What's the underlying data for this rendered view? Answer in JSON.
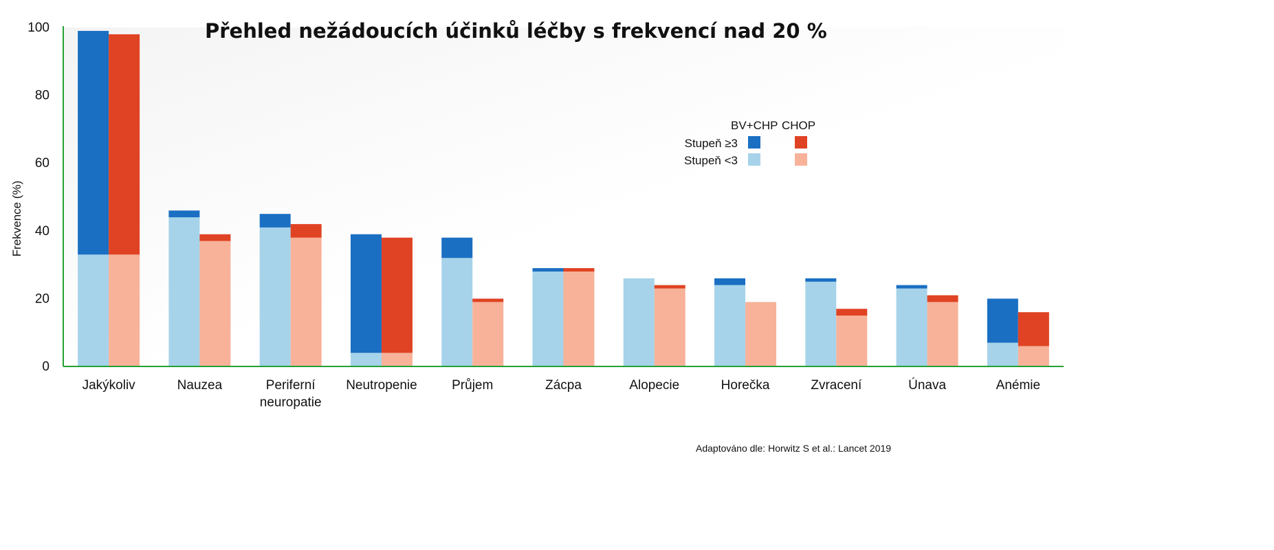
{
  "chart_data": {
    "type": "bar",
    "title": "Přehled nežádoucích účinků léčby s frekvencí nad 20 %",
    "ylabel": "Frekvence (%)",
    "xlabel": "",
    "ylim": [
      0,
      100
    ],
    "yticks": [
      0,
      20,
      40,
      60,
      80,
      100
    ],
    "categories": [
      "Jakýkoliv",
      "Nauzea",
      "Periferní neuropatie",
      "Neutropenie",
      "Průjem",
      "Zácpa",
      "Alopecie",
      "Horečka",
      "Zvracení",
      "Únava",
      "Anémie"
    ],
    "series": [
      {
        "name": "BV+CHP",
        "color_high": "#1a6fc2",
        "color_low": "#a6d3ea",
        "grade_lt3": [
          33,
          44,
          41,
          4,
          32,
          28,
          26,
          24,
          25,
          23,
          7
        ],
        "grade_ge3": [
          66,
          2,
          4,
          35,
          6,
          1,
          0,
          2,
          1,
          1,
          13
        ]
      },
      {
        "name": "CHOP",
        "color_high": "#e04323",
        "color_low": "#f7b299",
        "grade_lt3": [
          33,
          37,
          38,
          4,
          19,
          28,
          23,
          19,
          15,
          19,
          6
        ],
        "grade_ge3": [
          65,
          2,
          4,
          34,
          1,
          1,
          1,
          0,
          2,
          2,
          10
        ]
      }
    ],
    "legend": {
      "position": "right",
      "columns": [
        "BV+CHP",
        "CHOP"
      ],
      "rows": [
        "Stupeň ≥3",
        "Stupeň <3"
      ]
    },
    "grid": false,
    "source": "Adaptováno dle: Horwitz S et al.: Lancet 2019",
    "axis_color": "#22a033"
  }
}
